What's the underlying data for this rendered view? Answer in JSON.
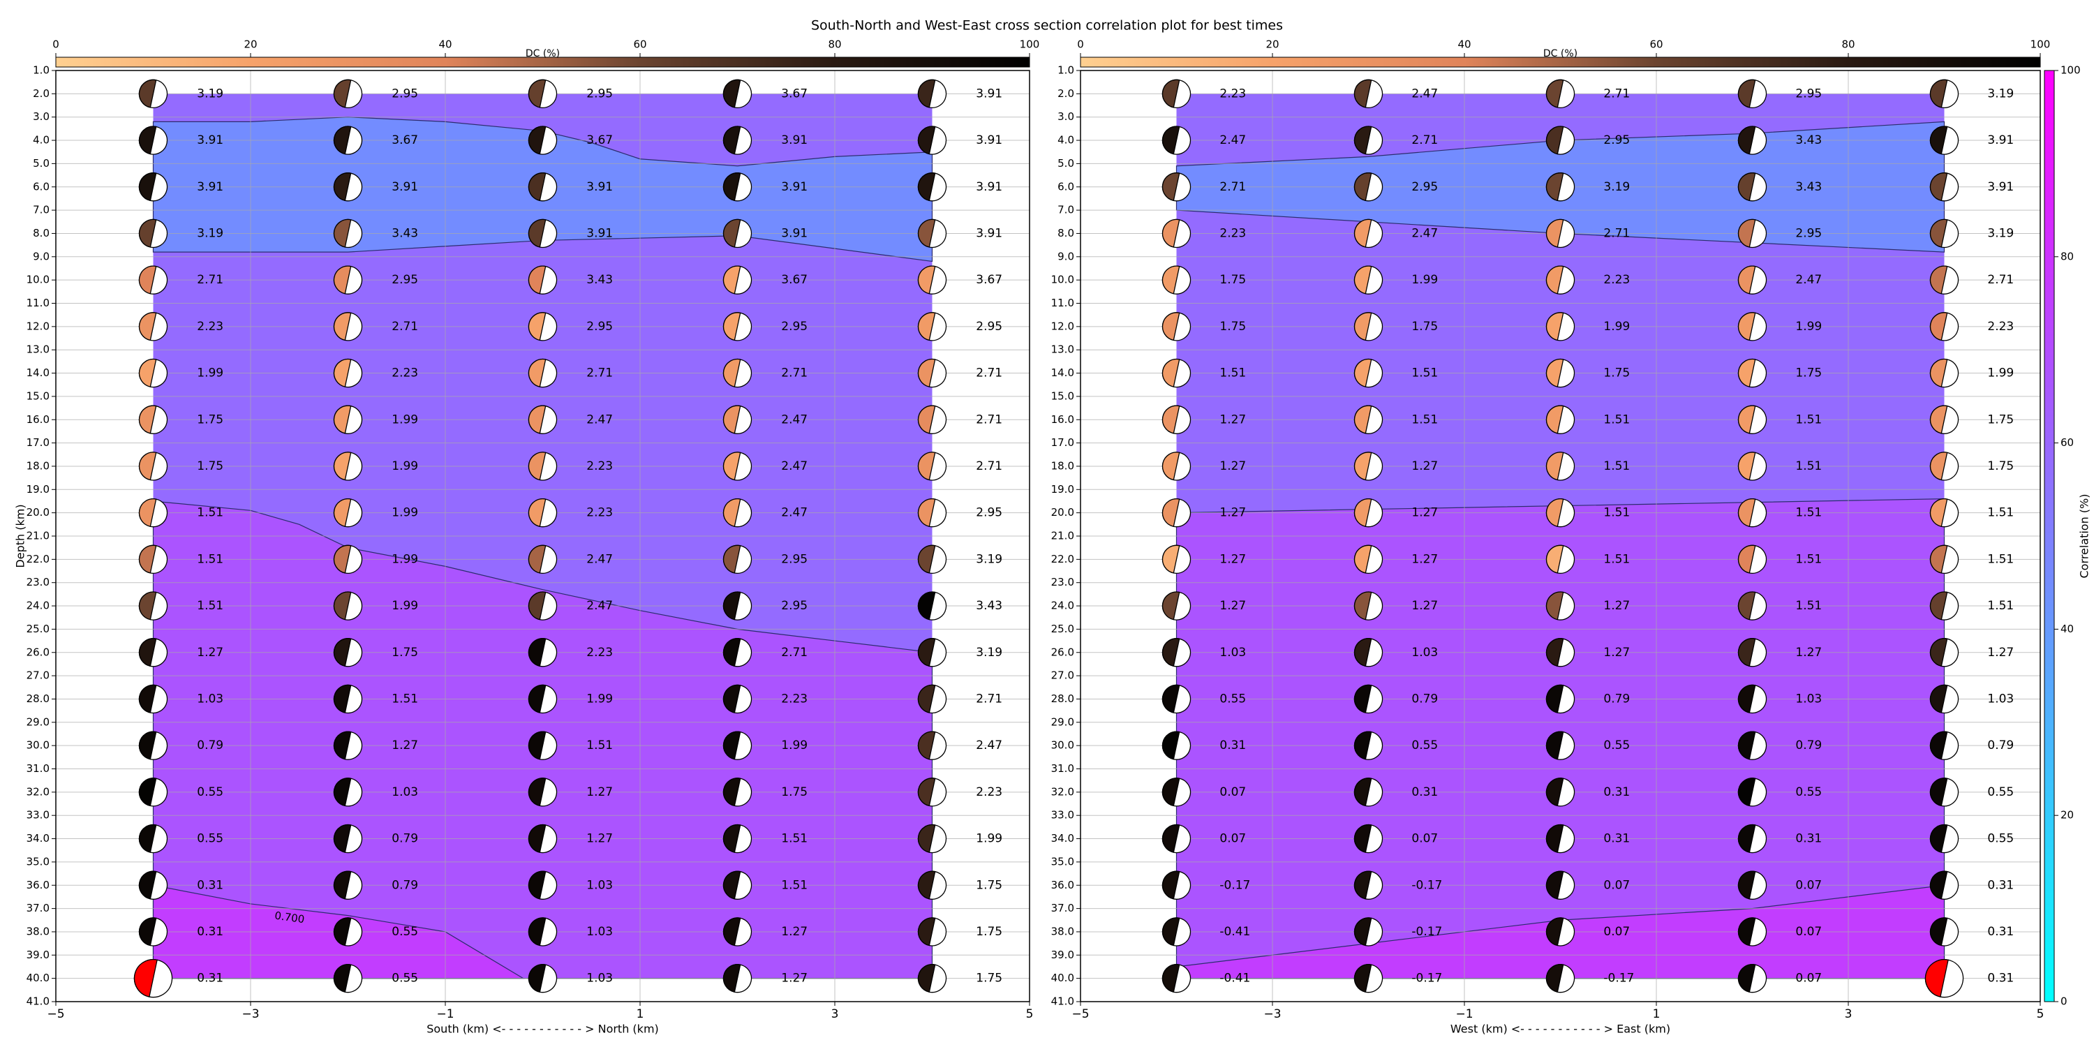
{
  "title": "South-North and West-East cross section correlation plot for best times",
  "depth_axis": {
    "ylim": [
      41,
      1
    ],
    "yticks": [
      {
        "value": 1,
        "label": "1.0"
      },
      {
        "value": 2,
        "label": "2.0"
      },
      {
        "value": 3,
        "label": "3.0"
      },
      {
        "value": 4,
        "label": "4.0"
      },
      {
        "value": 5,
        "label": "5.0"
      },
      {
        "value": 6,
        "label": "6.0"
      },
      {
        "value": 7,
        "label": "7.0"
      },
      {
        "value": 8,
        "label": "8.0"
      },
      {
        "value": 9,
        "label": "9.0"
      },
      {
        "value": 10,
        "label": "10.0"
      },
      {
        "value": 11,
        "label": "11.0"
      },
      {
        "value": 12,
        "label": "12.0"
      },
      {
        "value": 13,
        "label": "13.0"
      },
      {
        "value": 14,
        "label": "14.0"
      },
      {
        "value": 15,
        "label": "15.0"
      },
      {
        "value": 16,
        "label": "16.0"
      },
      {
        "value": 17,
        "label": "17.0"
      },
      {
        "value": 18,
        "label": "18.0"
      },
      {
        "value": 19,
        "label": "19.0"
      },
      {
        "value": 20,
        "label": "20.0"
      },
      {
        "value": 21,
        "label": "21.0"
      },
      {
        "value": 22,
        "label": "22.0"
      },
      {
        "value": 23,
        "label": "23.0"
      },
      {
        "value": 24,
        "label": "24.0"
      },
      {
        "value": 25,
        "label": "25.0"
      },
      {
        "value": 26,
        "label": "26.0"
      },
      {
        "value": 27,
        "label": "27.0"
      },
      {
        "value": 28,
        "label": "28.0"
      },
      {
        "value": 29,
        "label": "29.0"
      },
      {
        "value": 30,
        "label": "30.0"
      },
      {
        "value": 31,
        "label": "31.0"
      },
      {
        "value": 32,
        "label": "32.0"
      },
      {
        "value": 33,
        "label": "33.0"
      },
      {
        "value": 34,
        "label": "34.0"
      },
      {
        "value": 35,
        "label": "35.0"
      },
      {
        "value": 36,
        "label": "36.0"
      },
      {
        "value": 37,
        "label": "37.0"
      },
      {
        "value": 38,
        "label": "38.0"
      },
      {
        "value": 39,
        "label": "39.0"
      },
      {
        "value": 40,
        "label": "40.0"
      },
      {
        "value": 41,
        "label": "41.0"
      }
    ]
  },
  "dc_colorbar": {
    "label": "DC (%)",
    "lim": [
      0,
      100
    ],
    "ticks": [
      0,
      20,
      40,
      60,
      80,
      100
    ],
    "colormap": [
      "#ffd090",
      "#f6a26a",
      "#e0845a",
      "#6b4430",
      "#2a1a12",
      "#000000"
    ]
  },
  "correlation_colorbar": {
    "label": "Correlation (%)",
    "lim": [
      0,
      100
    ],
    "ticks": [
      0,
      20,
      40,
      60,
      80,
      100
    ],
    "colormap": [
      "#00ffff",
      "#ff00ff"
    ]
  },
  "best_color": "#ff0000",
  "chart_data": [
    {
      "type": "contour",
      "xlabel": "South (km) <- - - - - - - - - - - > North (km)",
      "ylabel": "Depth (km)",
      "xlim": [
        -5,
        5
      ],
      "xticks": [
        {
          "value": -5,
          "label": "−5"
        },
        {
          "value": -3,
          "label": "−3"
        },
        {
          "value": -1,
          "label": "−1"
        },
        1,
        3,
        5
      ],
      "grid": true,
      "x": [
        -4,
        -2,
        0,
        2,
        4
      ],
      "depths": [
        2,
        4,
        6,
        8,
        10,
        12,
        14,
        16,
        18,
        20,
        22,
        24,
        26,
        28,
        30,
        32,
        34,
        36,
        38,
        40
      ],
      "values": [
        [
          3.19,
          2.95,
          2.95,
          3.67,
          3.91
        ],
        [
          3.91,
          3.67,
          3.67,
          3.91,
          3.91
        ],
        [
          3.91,
          3.91,
          3.91,
          3.91,
          3.91
        ],
        [
          3.19,
          3.43,
          3.91,
          3.91,
          3.91
        ],
        [
          2.71,
          2.95,
          3.43,
          3.67,
          3.67
        ],
        [
          2.23,
          2.71,
          2.95,
          2.95,
          2.95
        ],
        [
          1.99,
          2.23,
          2.71,
          2.71,
          2.71
        ],
        [
          1.75,
          1.99,
          2.47,
          2.47,
          2.71
        ],
        [
          1.75,
          1.99,
          2.23,
          2.47,
          2.71
        ],
        [
          1.51,
          1.99,
          2.23,
          2.47,
          2.95
        ],
        [
          1.51,
          1.99,
          2.47,
          2.95,
          3.19
        ],
        [
          1.51,
          1.99,
          2.47,
          2.95,
          3.43
        ],
        [
          1.27,
          1.75,
          2.23,
          2.71,
          3.19
        ],
        [
          1.03,
          1.51,
          1.99,
          2.23,
          2.71
        ],
        [
          0.79,
          1.27,
          1.51,
          1.99,
          2.47
        ],
        [
          0.55,
          1.03,
          1.27,
          1.75,
          2.23
        ],
        [
          0.55,
          0.79,
          1.27,
          1.51,
          1.99
        ],
        [
          0.31,
          0.79,
          1.03,
          1.51,
          1.75
        ],
        [
          0.31,
          0.55,
          1.03,
          1.27,
          1.75
        ],
        [
          0.31,
          0.55,
          1.03,
          1.27,
          1.75
        ]
      ],
      "dc": [
        [
          65,
          62,
          62,
          85,
          75
        ],
        [
          88,
          85,
          85,
          88,
          85
        ],
        [
          88,
          80,
          70,
          88,
          85
        ],
        [
          62,
          55,
          65,
          60,
          55
        ],
        [
          40,
          35,
          40,
          20,
          25
        ],
        [
          30,
          25,
          20,
          20,
          25
        ],
        [
          20,
          20,
          25,
          25,
          30
        ],
        [
          30,
          25,
          30,
          30,
          35
        ],
        [
          30,
          20,
          30,
          20,
          30
        ],
        [
          30,
          25,
          25,
          25,
          30
        ],
        [
          45,
          45,
          50,
          55,
          60
        ],
        [
          60,
          60,
          65,
          90,
          98
        ],
        [
          85,
          85,
          95,
          95,
          80
        ],
        [
          92,
          92,
          95,
          92,
          75
        ],
        [
          95,
          95,
          95,
          95,
          70
        ],
        [
          98,
          95,
          92,
          92,
          70
        ],
        [
          95,
          92,
          92,
          90,
          75
        ],
        [
          95,
          92,
          95,
          90,
          80
        ],
        [
          95,
          95,
          95,
          92,
          80
        ],
        [
          95,
          95,
          95,
          92,
          85
        ]
      ],
      "best": {
        "x": -4,
        "depth": 40
      },
      "regions": [
        {
          "level": 58,
          "x": [
            -4,
            4,
            4,
            -4
          ],
          "y": [
            2,
            2,
            40,
            40
          ]
        },
        {
          "level": 45,
          "x": [
            -4,
            -3,
            -2,
            -1,
            0,
            0.5,
            1,
            2,
            3,
            4,
            4,
            2,
            0,
            -2,
            -4
          ],
          "y": [
            3.2,
            3.2,
            3.0,
            3.2,
            3.6,
            4.1,
            4.8,
            5.1,
            4.7,
            4.5,
            9.2,
            8.1,
            8.3,
            8.8,
            8.8
          ]
        },
        {
          "level": 67,
          "x": [
            -4,
            -3,
            -2.5,
            -2,
            -1,
            0,
            1,
            2,
            3,
            4,
            4,
            -4
          ],
          "y": [
            19.5,
            19.9,
            20.5,
            21.5,
            22.3,
            23.3,
            24.2,
            25,
            25.5,
            26,
            40,
            40
          ]
        },
        {
          "level": 76,
          "x": [
            -4,
            -3,
            -2,
            -1,
            -0.6,
            -0.2,
            -4
          ],
          "y": [
            36,
            36.8,
            37.3,
            38,
            39,
            40,
            40
          ]
        }
      ],
      "contour_labels": [
        {
          "text": "0.700",
          "x": -2.6,
          "depth": 37.4
        }
      ]
    },
    {
      "type": "contour",
      "xlabel": "West (km) <- - - - - - - - - - - > East (km)",
      "xlim": [
        -5,
        5
      ],
      "xticks": [
        {
          "value": -5,
          "label": "−5"
        },
        {
          "value": -3,
          "label": "−3"
        },
        {
          "value": -1,
          "label": "−1"
        },
        1,
        3,
        5
      ],
      "grid": true,
      "x": [
        -4,
        -2,
        0,
        2,
        4
      ],
      "depths": [
        2,
        4,
        6,
        8,
        10,
        12,
        14,
        16,
        18,
        20,
        22,
        24,
        26,
        28,
        30,
        32,
        34,
        36,
        38,
        40
      ],
      "values": [
        [
          2.23,
          2.47,
          2.71,
          2.95,
          3.19
        ],
        [
          2.47,
          2.71,
          2.95,
          3.43,
          3.91
        ],
        [
          2.71,
          2.95,
          3.19,
          3.43,
          3.91
        ],
        [
          2.23,
          2.47,
          2.71,
          2.95,
          3.19
        ],
        [
          1.75,
          1.99,
          2.23,
          2.47,
          2.71
        ],
        [
          1.75,
          1.75,
          1.99,
          1.99,
          2.23
        ],
        [
          1.51,
          1.51,
          1.75,
          1.75,
          1.99
        ],
        [
          1.27,
          1.51,
          1.51,
          1.51,
          1.75
        ],
        [
          1.27,
          1.27,
          1.51,
          1.51,
          1.75
        ],
        [
          1.27,
          1.27,
          1.51,
          1.51,
          1.51
        ],
        [
          1.27,
          1.27,
          1.51,
          1.51,
          1.51
        ],
        [
          1.27,
          1.27,
          1.27,
          1.51,
          1.51
        ],
        [
          1.03,
          1.03,
          1.27,
          1.27,
          1.27
        ],
        [
          0.55,
          0.79,
          0.79,
          1.03,
          1.03
        ],
        [
          0.31,
          0.55,
          0.55,
          0.79,
          0.79
        ],
        [
          0.07,
          0.31,
          0.31,
          0.55,
          0.55
        ],
        [
          0.07,
          0.07,
          0.31,
          0.31,
          0.55
        ],
        [
          -0.17,
          -0.17,
          0.07,
          0.07,
          0.31
        ],
        [
          -0.41,
          -0.17,
          0.07,
          0.07,
          0.31
        ],
        [
          -0.41,
          -0.17,
          -0.17,
          0.07,
          0.31
        ]
      ],
      "dc": [
        [
          65,
          65,
          60,
          65,
          65
        ],
        [
          88,
          80,
          70,
          85,
          88
        ],
        [
          60,
          62,
          60,
          62,
          60
        ],
        [
          30,
          25,
          30,
          45,
          55
        ],
        [
          25,
          20,
          25,
          30,
          45
        ],
        [
          30,
          25,
          20,
          25,
          40
        ],
        [
          25,
          20,
          20,
          20,
          30
        ],
        [
          30,
          25,
          25,
          25,
          30
        ],
        [
          25,
          20,
          25,
          20,
          30
        ],
        [
          30,
          25,
          25,
          30,
          25
        ],
        [
          15,
          20,
          15,
          40,
          45
        ],
        [
          60,
          55,
          55,
          60,
          62
        ],
        [
          80,
          80,
          80,
          75,
          75
        ],
        [
          95,
          95,
          95,
          92,
          88
        ],
        [
          98,
          95,
          95,
          95,
          95
        ],
        [
          92,
          90,
          90,
          98,
          95
        ],
        [
          92,
          92,
          92,
          95,
          95
        ],
        [
          90,
          88,
          92,
          92,
          95
        ],
        [
          90,
          90,
          90,
          95,
          95
        ],
        [
          90,
          90,
          90,
          95,
          95
        ]
      ],
      "best": {
        "x": 4,
        "depth": 40
      },
      "regions": [
        {
          "level": 58,
          "x": [
            -4,
            4,
            4,
            -4
          ],
          "y": [
            2,
            2,
            40,
            40
          ]
        },
        {
          "level": 45,
          "x": [
            -4,
            -2,
            0,
            2,
            4,
            4,
            0,
            -4
          ],
          "y": [
            5.1,
            4.7,
            4.0,
            3.7,
            3.2,
            8.8,
            8.0,
            7.0
          ]
        },
        {
          "level": 67,
          "x": [
            -4,
            4,
            4,
            -4
          ],
          "y": [
            20,
            19.4,
            40,
            40
          ]
        },
        {
          "level": 76,
          "x": [
            -4,
            -2,
            -1,
            0,
            2,
            4,
            4,
            -4
          ],
          "y": [
            39.5,
            38.5,
            38,
            37.5,
            37,
            36,
            40,
            40
          ]
        }
      ],
      "contour_labels": []
    }
  ]
}
